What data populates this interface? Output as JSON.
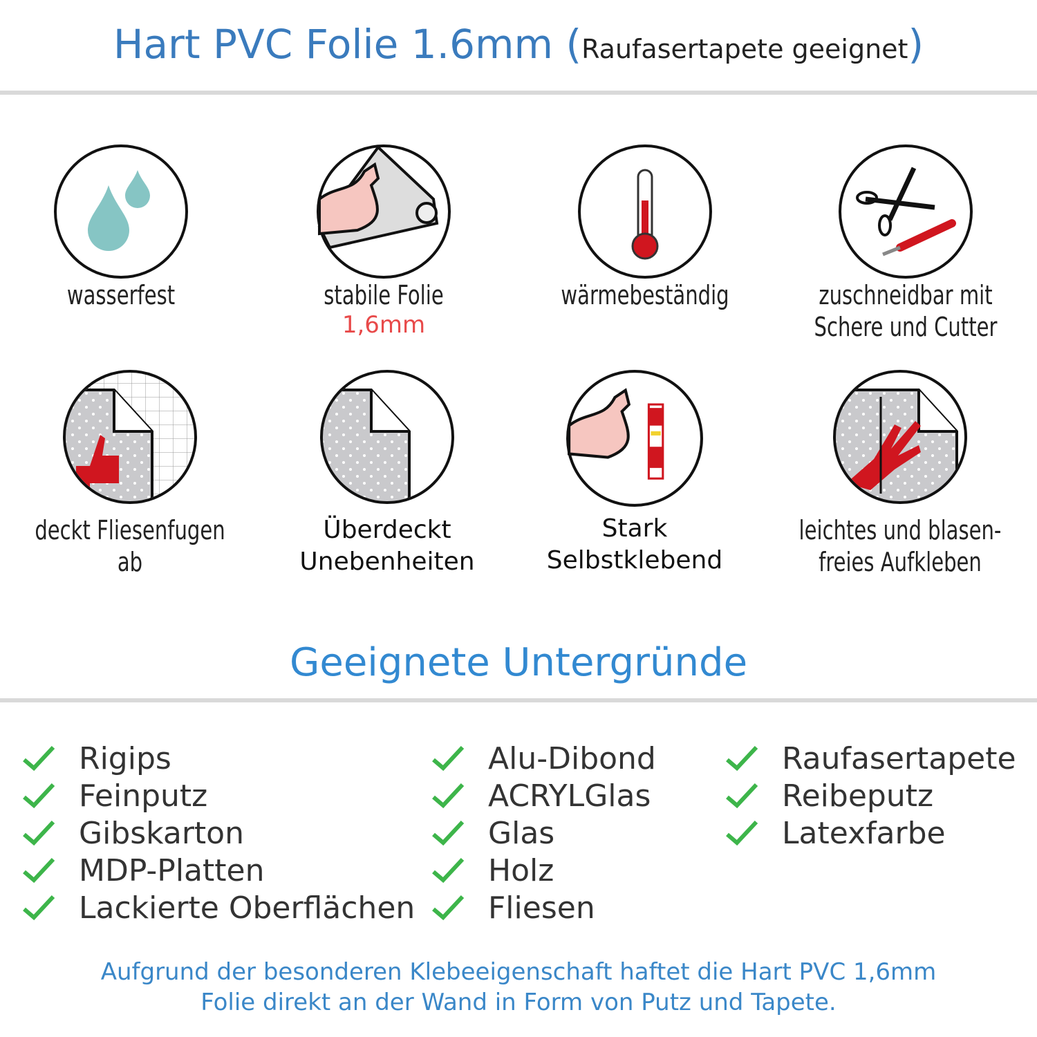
{
  "header": {
    "title": "Hart PVC Folie 1.6mm",
    "paren_open": "(",
    "subtitle": "Raufasertapete geeignet",
    "paren_close": ")"
  },
  "features": [
    {
      "icon": "water-drops-icon",
      "label": "wasserfest"
    },
    {
      "icon": "strong-arm-foil-icon",
      "label": "stabile Folie",
      "highlight": "1,6mm"
    },
    {
      "icon": "thermometer-icon",
      "label": "wärmebeständig"
    },
    {
      "icon": "scissors-cutter-icon",
      "label": "zuschneidbar mit",
      "label2": "Schere und Cutter"
    },
    {
      "icon": "thumbs-up-tiles-icon",
      "label": "deckt Fliesenfugen ab"
    },
    {
      "icon": "foil-corner-icon",
      "label": "Überdeckt",
      "label2": "Unebenheiten"
    },
    {
      "icon": "arm-glue-icon",
      "label": "Stark",
      "label2": "Selbstklebend"
    },
    {
      "icon": "hand-smoothing-icon",
      "label": "leichtes und blasen-",
      "label2": "freies Aufkleben"
    }
  ],
  "section_title": "Geeignete Untergründe",
  "surfaces": {
    "col1": [
      "Rigips",
      "Feinputz",
      "Gibskarton",
      "MDP-Platten",
      "Lackierte Oberflächen"
    ],
    "col2": [
      "Alu-Dibond",
      "ACRYLGlas",
      "Glas",
      "Holz",
      "Fliesen"
    ],
    "col3": [
      "Raufasertapete",
      "Reibeputz",
      "Latexfarbe"
    ]
  },
  "footer": {
    "line1": "Aufgrund der besonderen Klebeeigenschaft haftet die Hart PVC 1,6mm",
    "line2": "Folie direkt an der Wand in Form von Putz und Tapete."
  },
  "colors": {
    "title": "#3a7bbd",
    "section": "#3289d1",
    "check": "#3db54a",
    "highlight": "#e84a4a",
    "icon_red": "#d0161f",
    "drop": "#86c5c4"
  }
}
